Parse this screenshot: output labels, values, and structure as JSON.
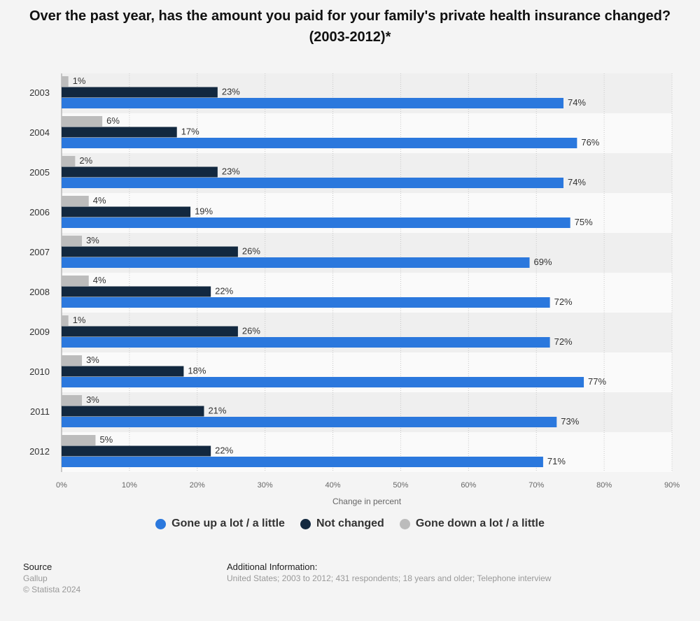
{
  "chart_data": {
    "type": "hbar",
    "title": "Over the past year, has the amount you paid for your family's private health insurance changed? (2003-2012)*",
    "x_label": "Change in percent",
    "categories": [
      "2003",
      "2004",
      "2005",
      "2006",
      "2007",
      "2008",
      "2009",
      "2010",
      "2011",
      "2012"
    ],
    "series": [
      {
        "name": "Gone up a lot / a little",
        "color": "#2b78dd",
        "values": [
          74,
          76,
          74,
          75,
          69,
          72,
          72,
          77,
          73,
          71
        ],
        "value_labels": [
          "74%",
          "76%",
          "74%",
          "75%",
          "69%",
          "72%",
          "72%",
          "77%",
          "73%",
          "71%"
        ]
      },
      {
        "name": "Not changed",
        "color": "#12283f",
        "values": [
          23,
          17,
          23,
          19,
          26,
          22,
          26,
          18,
          21,
          22
        ],
        "value_labels": [
          "23%",
          "17%",
          "23%",
          "19%",
          "26%",
          "22%",
          "26%",
          "18%",
          "21%",
          "22%"
        ]
      },
      {
        "name": "Gone down a lot / a little",
        "color": "#bcbcbc",
        "values": [
          1,
          6,
          2,
          4,
          3,
          4,
          1,
          3,
          3,
          5
        ],
        "value_labels": [
          "1%",
          "6%",
          "2%",
          "4%",
          "3%",
          "4%",
          "1%",
          "3%",
          "3%",
          "5%"
        ]
      }
    ],
    "xlim": [
      0,
      90
    ],
    "xticks": [
      {
        "value": 0,
        "label": "0%"
      },
      {
        "value": 10,
        "label": "10%"
      },
      {
        "value": 20,
        "label": "20%"
      },
      {
        "value": 30,
        "label": "30%"
      },
      {
        "value": 40,
        "label": "40%"
      },
      {
        "value": 50,
        "label": "50%"
      },
      {
        "value": 60,
        "label": "60%"
      },
      {
        "value": 70,
        "label": "70%"
      },
      {
        "value": 80,
        "label": "80%"
      },
      {
        "value": 90,
        "label": "90%"
      }
    ],
    "grid": true,
    "legend": "bottom"
  },
  "footer": {
    "source_title": "Source",
    "source": "Gallup",
    "copyright": "© Statista 2024",
    "info_title": "Additional Information:",
    "info": "United States; 2003 to 2012; 431 respondents; 18 years and older; Telephone interview"
  }
}
